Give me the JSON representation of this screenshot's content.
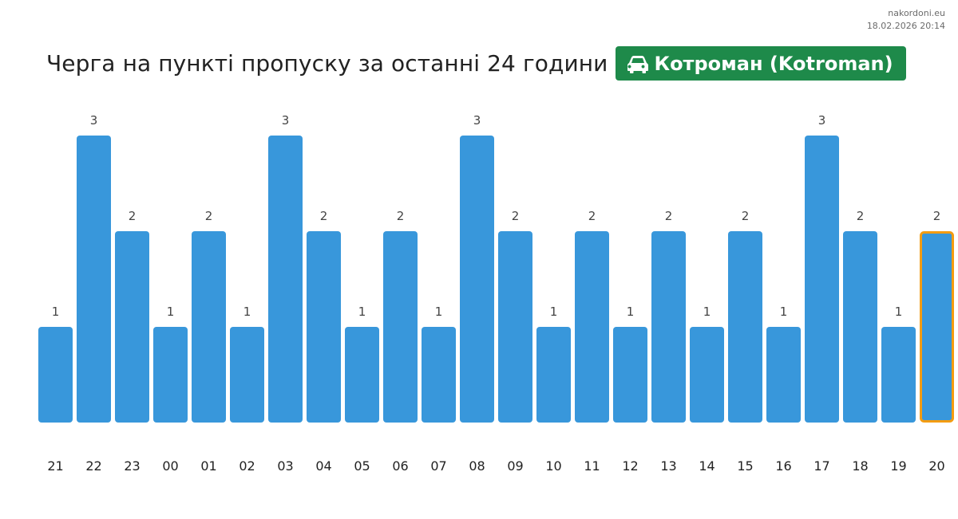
{
  "site": {
    "domain": "nakordoni.eu",
    "timestamp": "18.02.2026 20:14"
  },
  "header": {
    "title": "Черга на пункті пропуску за останні 24 години",
    "crossing_name": "Котроман (Kotroman)",
    "crossing_icon": "car-icon"
  },
  "colors": {
    "bar": "#3897db",
    "bar_highlight_border": "#f39c12",
    "badge": "#1e8a4a"
  },
  "chart_data": {
    "type": "bar",
    "categories": [
      "21",
      "22",
      "23",
      "00",
      "01",
      "02",
      "03",
      "04",
      "05",
      "06",
      "07",
      "08",
      "09",
      "10",
      "11",
      "12",
      "13",
      "14",
      "15",
      "16",
      "17",
      "18",
      "19",
      "20"
    ],
    "values": [
      1,
      3,
      2,
      1,
      2,
      1,
      3,
      2,
      1,
      2,
      1,
      3,
      2,
      1,
      2,
      1,
      2,
      1,
      2,
      1,
      3,
      2,
      1,
      2
    ],
    "highlighted_category": "20",
    "ylim": [
      0,
      3
    ],
    "grid": false,
    "legend": "none",
    "xlabel": "",
    "ylabel": ""
  }
}
